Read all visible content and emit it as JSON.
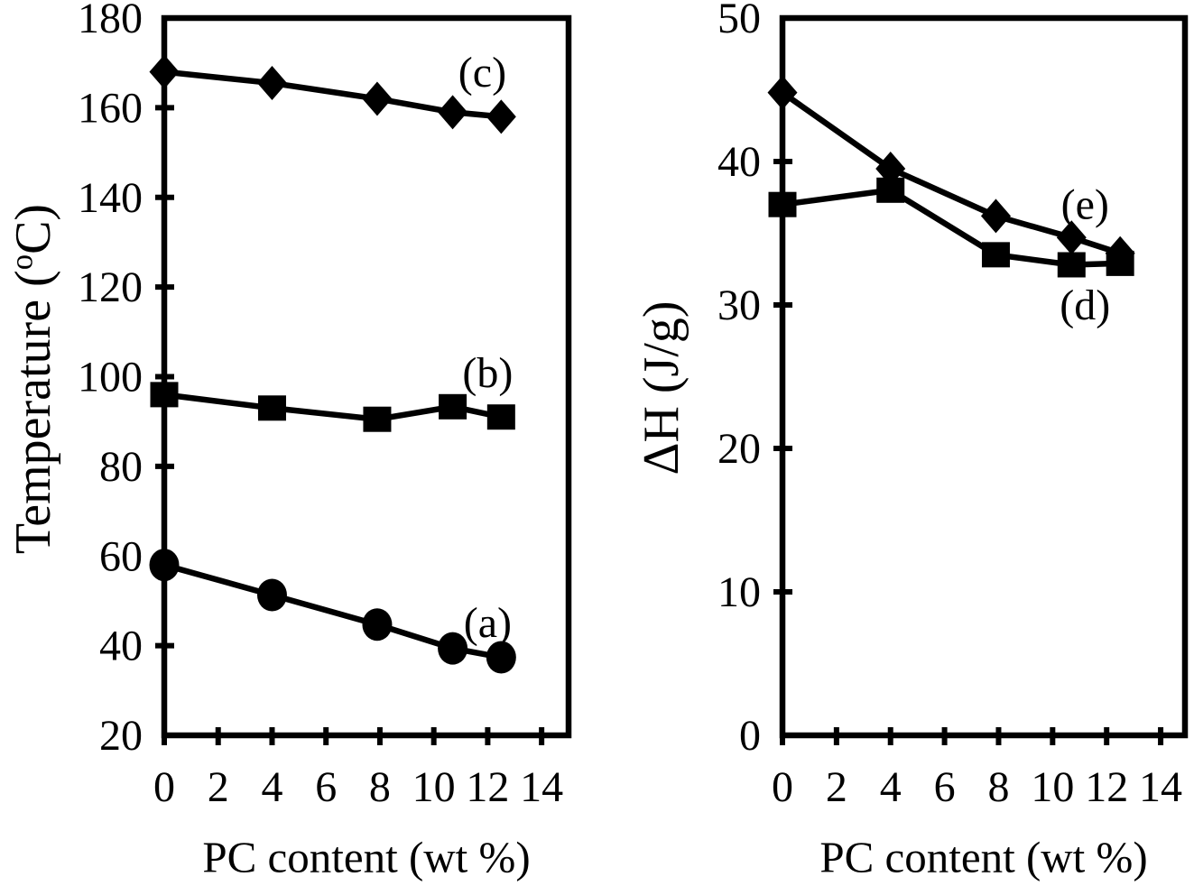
{
  "figure": {
    "background": "#ffffff",
    "ink_color": "#000000"
  },
  "chart_data": [
    {
      "type": "line",
      "title": "",
      "xlabel": "PC content (wt %)",
      "ylabel": "Temperature (°C)",
      "ylabel_display": {
        "prefix": "Temperature (",
        "sup": "o",
        "suffix": "C)"
      },
      "xlim": [
        0,
        15
      ],
      "ylim": [
        20,
        180
      ],
      "xticks": [
        0,
        2,
        4,
        6,
        8,
        10,
        12,
        14
      ],
      "yticks": [
        20,
        40,
        60,
        80,
        100,
        120,
        140,
        160,
        180
      ],
      "grid": false,
      "legend": "inline-annotations",
      "x": [
        0,
        4,
        7.9,
        10.7,
        12.5
      ],
      "series": [
        {
          "name": "(c)",
          "marker": "diamond",
          "color": "#000000",
          "values": [
            168,
            165.5,
            162,
            159,
            158
          ]
        },
        {
          "name": "(b)",
          "marker": "square",
          "color": "#000000",
          "values": [
            96,
            93,
            90.5,
            93.3,
            91
          ]
        },
        {
          "name": "(a)",
          "marker": "circle",
          "color": "#000000",
          "values": [
            58,
            51.3,
            44.7,
            39.4,
            37.4
          ]
        }
      ],
      "annotations": [
        {
          "text": "(c)",
          "x": 11.8,
          "y": 167.9
        },
        {
          "text": "(b)",
          "x": 12.0,
          "y": 100.9
        },
        {
          "text": "(a)",
          "x": 12.0,
          "y": 45.2
        }
      ]
    },
    {
      "type": "line",
      "title": "",
      "xlabel": "PC content (wt %)",
      "ylabel": "ΔH (J/g)",
      "ylabel_display": {
        "prefix": "ΔH (J/g)",
        "sup": "",
        "suffix": ""
      },
      "xlim": [
        0,
        14.9
      ],
      "ylim": [
        0,
        50
      ],
      "xticks": [
        0,
        2,
        4,
        6,
        8,
        10,
        12,
        14
      ],
      "yticks": [
        0,
        10,
        20,
        30,
        40,
        50
      ],
      "grid": false,
      "legend": "inline-annotations",
      "x": [
        0,
        4,
        7.9,
        10.7,
        12.5
      ],
      "series": [
        {
          "name": "(d)",
          "marker": "square",
          "color": "#000000",
          "values": [
            37,
            38,
            33.5,
            32.8,
            32.9
          ]
        },
        {
          "name": "(e)",
          "marker": "diamond",
          "color": "#000000",
          "values": [
            44.8,
            39.5,
            36.2,
            34.7,
            33.6
          ]
        }
      ],
      "annotations": [
        {
          "text": "(e)",
          "x": 11.2,
          "y": 37.0
        },
        {
          "text": "(d)",
          "x": 11.2,
          "y": 30.0
        }
      ]
    }
  ]
}
